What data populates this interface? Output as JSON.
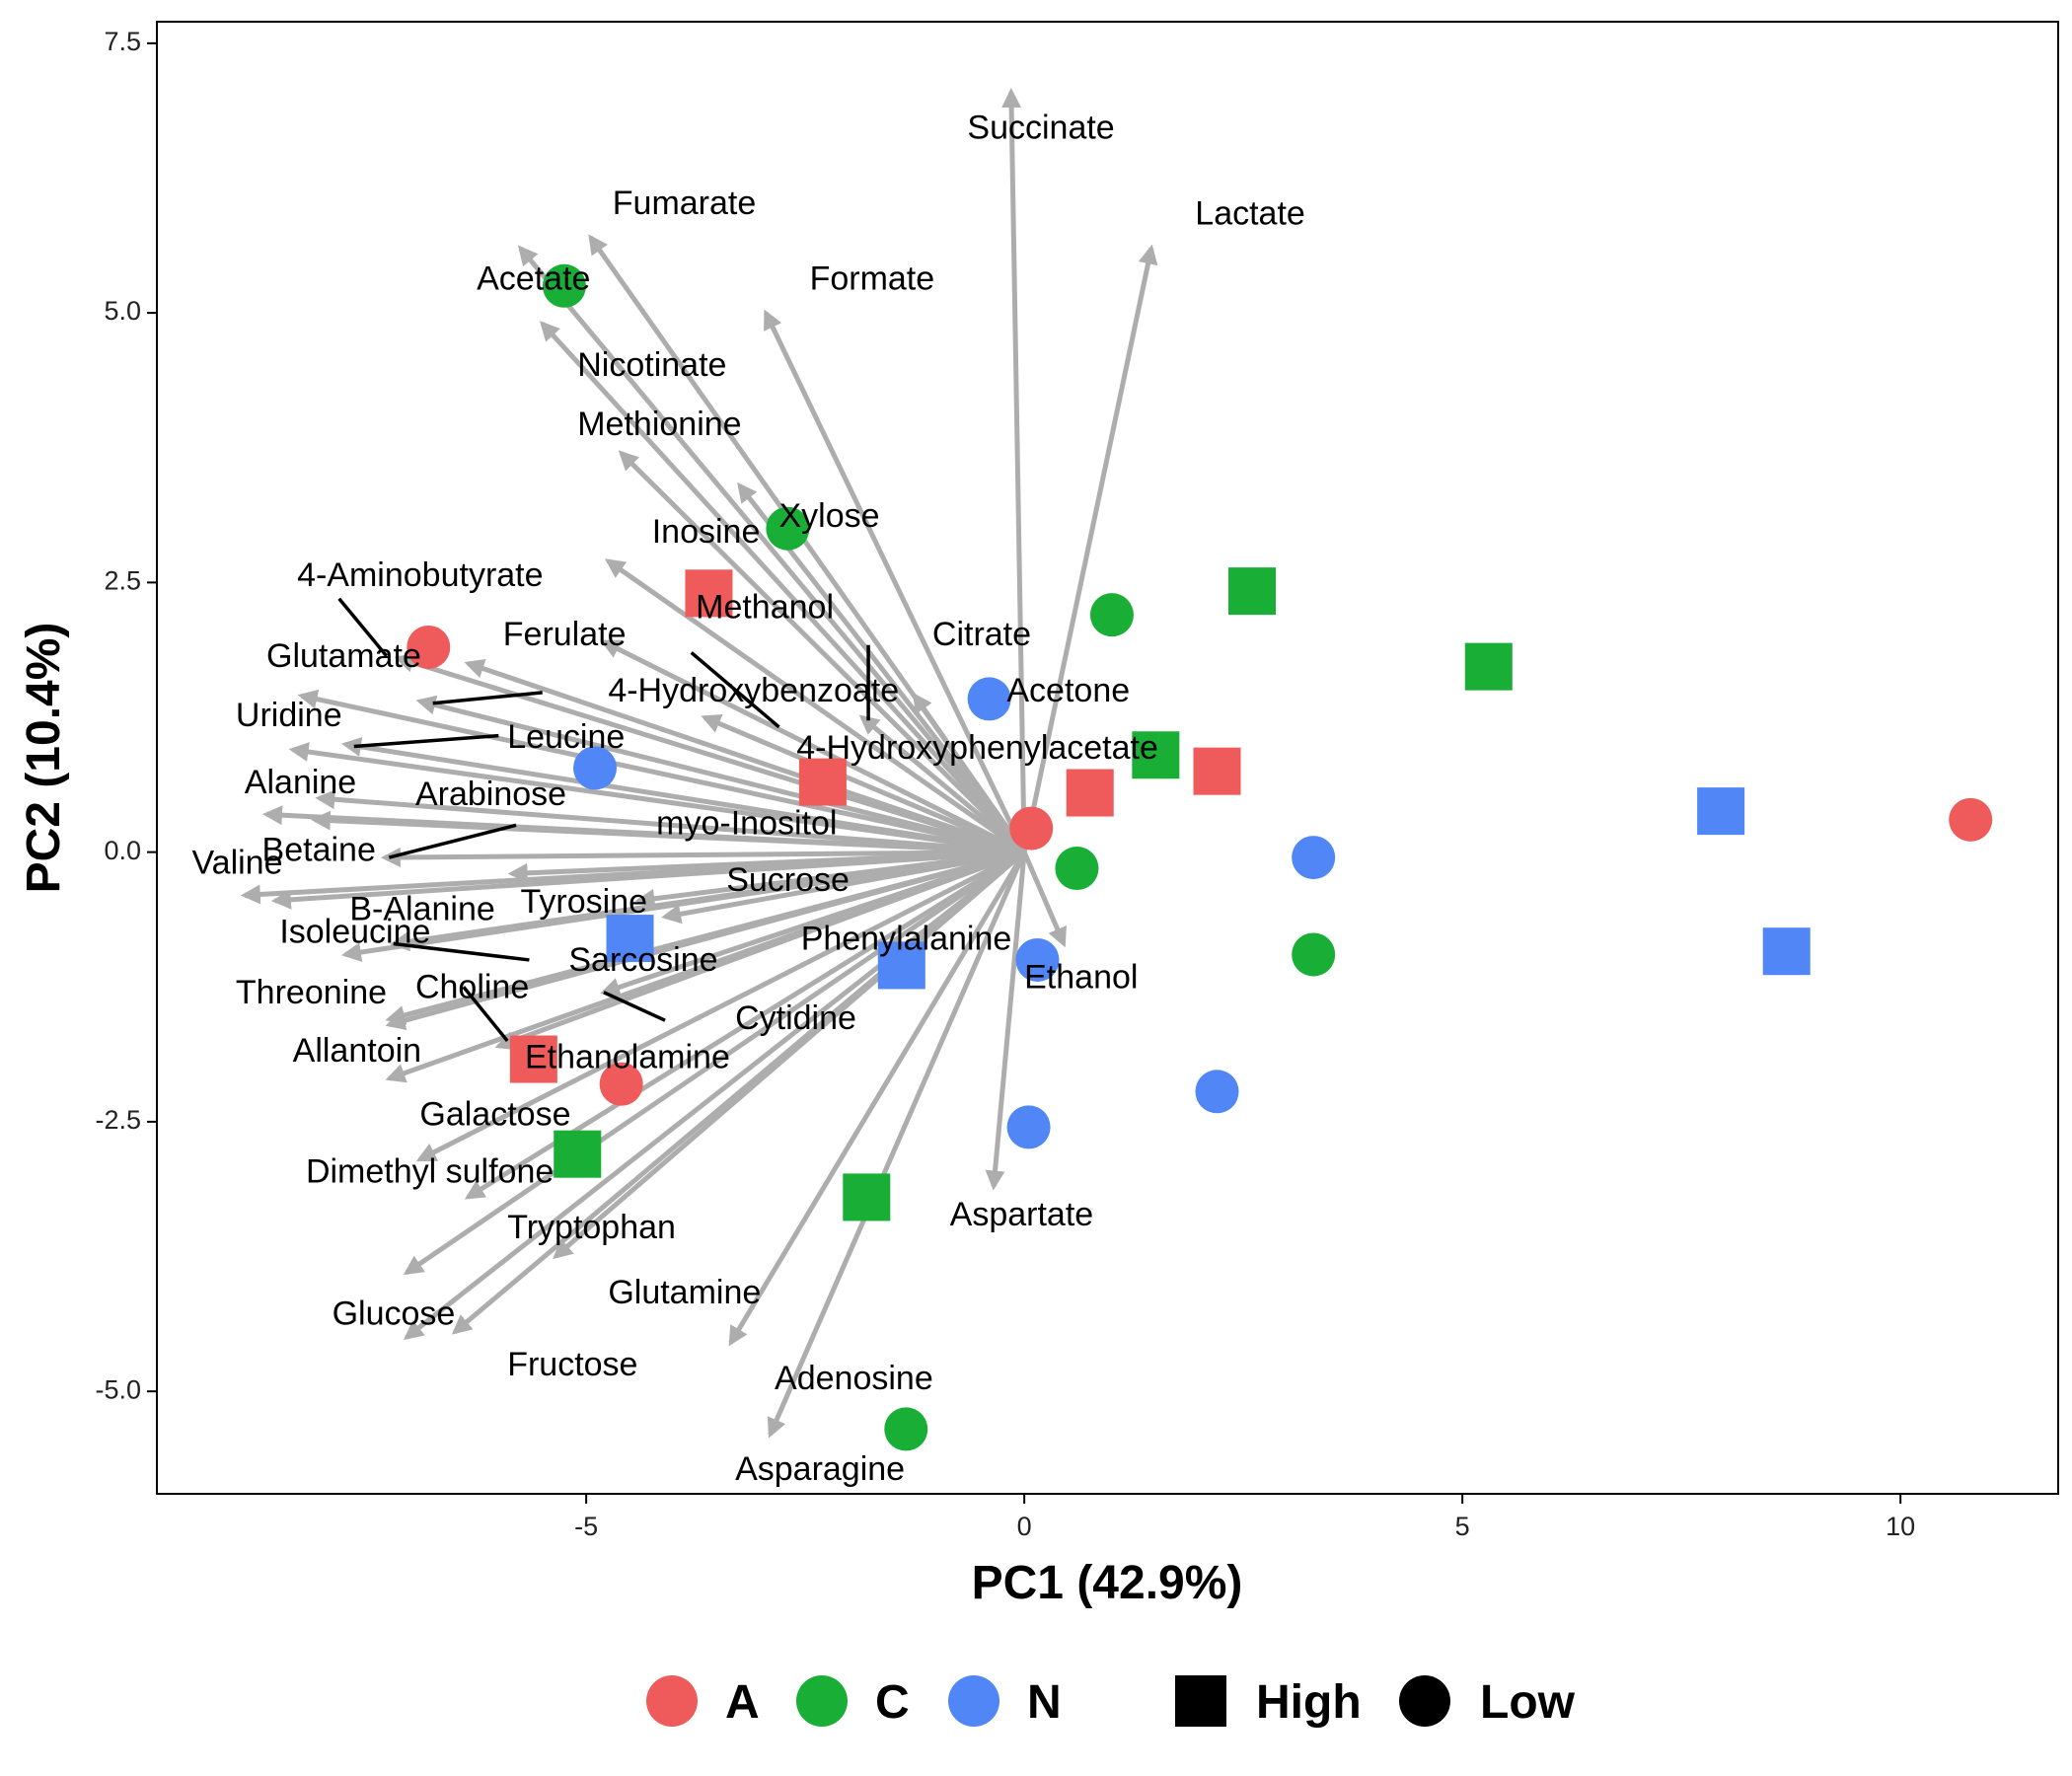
{
  "chart_data": {
    "type": "scatter",
    "xlabel": "PC1 (42.9%)",
    "ylabel": "PC2 (10.4%)",
    "xlim": [
      -9.9,
      11.8
    ],
    "ylim": [
      -5.95,
      7.7
    ],
    "xticks": [
      -5,
      0,
      5,
      10
    ],
    "xtick_labels": [
      "-5",
      "0",
      "5",
      "10"
    ],
    "yticks": [
      -5.0,
      -2.5,
      0.0,
      2.5,
      5.0,
      7.5
    ],
    "ytick_labels": [
      "-5.0",
      "-2.5",
      "0.0",
      "2.5",
      "5.0",
      "7.5"
    ],
    "grid": false,
    "legend_position": "bottom",
    "colors": {
      "A": "#EF5B5B",
      "C": "#19AE35",
      "N": "#5086F5",
      "arrow": "#ADADAD",
      "label": "#000000"
    },
    "legend": {
      "color_groups": [
        {
          "key": "A",
          "label": "A"
        },
        {
          "key": "C",
          "label": "C"
        },
        {
          "key": "N",
          "label": "N"
        }
      ],
      "shape_groups": [
        {
          "key": "High",
          "label": "High",
          "shape": "square"
        },
        {
          "key": "Low",
          "label": "Low",
          "shape": "circle"
        }
      ]
    },
    "points": [
      {
        "x": -6.8,
        "y": 1.9,
        "group": "A",
        "shape": "Low"
      },
      {
        "x": -3.6,
        "y": 2.4,
        "group": "A",
        "shape": "High"
      },
      {
        "x": -2.3,
        "y": 0.65,
        "group": "A",
        "shape": "High"
      },
      {
        "x": 0.08,
        "y": 0.22,
        "group": "A",
        "shape": "Low"
      },
      {
        "x": 0.75,
        "y": 0.55,
        "group": "A",
        "shape": "High"
      },
      {
        "x": 2.2,
        "y": 0.75,
        "group": "A",
        "shape": "High"
      },
      {
        "x": 10.8,
        "y": 0.3,
        "group": "A",
        "shape": "Low"
      },
      {
        "x": -5.6,
        "y": -1.92,
        "group": "A",
        "shape": "High"
      },
      {
        "x": -4.6,
        "y": -2.15,
        "group": "A",
        "shape": "Low"
      },
      {
        "x": -5.25,
        "y": 5.25,
        "group": "C",
        "shape": "Low"
      },
      {
        "x": -2.7,
        "y": 3.0,
        "group": "C",
        "shape": "Low"
      },
      {
        "x": 1.0,
        "y": 2.2,
        "group": "C",
        "shape": "Low"
      },
      {
        "x": 2.6,
        "y": 2.42,
        "group": "C",
        "shape": "High"
      },
      {
        "x": 5.3,
        "y": 1.72,
        "group": "C",
        "shape": "High"
      },
      {
        "x": 1.5,
        "y": 0.9,
        "group": "C",
        "shape": "High"
      },
      {
        "x": 0.6,
        "y": -0.15,
        "group": "C",
        "shape": "Low"
      },
      {
        "x": 3.3,
        "y": -0.95,
        "group": "C",
        "shape": "Low"
      },
      {
        "x": -5.1,
        "y": -2.8,
        "group": "C",
        "shape": "High"
      },
      {
        "x": -1.8,
        "y": -3.2,
        "group": "C",
        "shape": "High"
      },
      {
        "x": -1.35,
        "y": -5.35,
        "group": "C",
        "shape": "Low"
      },
      {
        "x": -0.4,
        "y": 1.42,
        "group": "N",
        "shape": "Low"
      },
      {
        "x": -4.9,
        "y": 0.78,
        "group": "N",
        "shape": "Low"
      },
      {
        "x": -4.5,
        "y": -0.8,
        "group": "N",
        "shape": "High"
      },
      {
        "x": -1.4,
        "y": -1.05,
        "group": "N",
        "shape": "High"
      },
      {
        "x": 0.15,
        "y": -1.0,
        "group": "N",
        "shape": "Low"
      },
      {
        "x": 3.3,
        "y": -0.05,
        "group": "N",
        "shape": "Low"
      },
      {
        "x": 2.2,
        "y": -2.22,
        "group": "N",
        "shape": "Low"
      },
      {
        "x": 0.05,
        "y": -2.55,
        "group": "N",
        "shape": "Low"
      },
      {
        "x": 7.95,
        "y": 0.38,
        "group": "N",
        "shape": "High"
      },
      {
        "x": 8.7,
        "y": -0.92,
        "group": "N",
        "shape": "High"
      }
    ],
    "loadings": [
      {
        "name": "Succinate",
        "x": -0.15,
        "y": 7.05,
        "lx": -0.65,
        "ly": 6.7
      },
      {
        "name": "Lactate",
        "x": 1.45,
        "y": 5.6,
        "lx": 1.95,
        "ly": 5.9
      },
      {
        "name": "Fumarate",
        "x": -4.95,
        "y": 5.7,
        "lx": -4.7,
        "ly": 6.0
      },
      {
        "name": "Acetate",
        "x": -5.75,
        "y": 5.6,
        "lx": -6.25,
        "ly": 5.3
      },
      {
        "name": "Formate",
        "x": -2.95,
        "y": 5.0,
        "lx": -2.45,
        "ly": 5.3
      },
      {
        "name": "Nicotinate",
        "x": -5.5,
        "y": 4.9,
        "lx": -5.1,
        "ly": 4.5
      },
      {
        "name": "Methionine",
        "x": -4.6,
        "y": 3.7,
        "lx": -5.1,
        "ly": 3.95
      },
      {
        "name": "Xylose",
        "x": -3.25,
        "y": 3.4,
        "lx": -2.8,
        "ly": 3.1
      },
      {
        "name": "Inosine",
        "x": -4.75,
        "y": 2.7,
        "lx": -4.25,
        "ly": 2.95
      },
      {
        "name": "4-Aminobutyrate",
        "x": -7.15,
        "y": 1.8,
        "lx": -8.3,
        "ly": 2.55
      },
      {
        "name": "Ferulate",
        "x": -6.35,
        "y": 1.75,
        "lx": -5.95,
        "ly": 2.0
      },
      {
        "name": "Methanol",
        "x": -4.8,
        "y": 1.95,
        "lx": -3.75,
        "ly": 2.25
      },
      {
        "name": "Citrate",
        "x": -1.85,
        "y": 1.25,
        "lx": -1.05,
        "ly": 2.0
      },
      {
        "name": "Glutamate",
        "x": -8.25,
        "y": 1.45,
        "lx": -8.65,
        "ly": 1.8
      },
      {
        "name": "4-Hydroxybenzoate",
        "x": -6.9,
        "y": 1.4,
        "lx": -4.75,
        "ly": 1.48
      },
      {
        "name": "Acetone",
        "x": -1.25,
        "y": 1.45,
        "lx": -0.2,
        "ly": 1.48
      },
      {
        "name": "Uridine",
        "x": -8.35,
        "y": 0.95,
        "lx": -9.0,
        "ly": 1.25
      },
      {
        "name": "Leucine",
        "x": -7.75,
        "y": 1.0,
        "lx": -5.9,
        "ly": 1.05
      },
      {
        "name": "4-Hydroxyphenylacetate",
        "x": -3.65,
        "y": 1.25,
        "lx": -2.6,
        "ly": 0.95
      },
      {
        "name": "Alanine",
        "x": -8.65,
        "y": 0.35,
        "lx": -8.9,
        "ly": 0.63
      },
      {
        "name": "Arabinose",
        "x": -8.05,
        "y": 0.5,
        "lx": -6.95,
        "ly": 0.52
      },
      {
        "name": "myo-Inositol",
        "x": -7.3,
        "y": -0.05,
        "lx": -4.2,
        "ly": 0.25
      },
      {
        "name": "Betaine",
        "x": -8.1,
        "y": 0.3,
        "lx": -8.7,
        "ly": 0.0
      },
      {
        "name": "Valine",
        "x": -8.9,
        "y": -0.4,
        "lx": -9.5,
        "ly": -0.12
      },
      {
        "name": "Sucrose",
        "x": -4.4,
        "y": -0.45,
        "lx": -3.4,
        "ly": -0.28
      },
      {
        "name": "Tyrosine",
        "x": -5.85,
        "y": -0.2,
        "lx": -5.75,
        "ly": -0.48
      },
      {
        "name": "B-Alanine",
        "x": -8.55,
        "y": -0.45,
        "lx": -7.7,
        "ly": -0.55
      },
      {
        "name": "Phenylalanine",
        "x": -4.1,
        "y": -0.6,
        "lx": -2.55,
        "ly": -0.82
      },
      {
        "name": "Isoleucine",
        "x": -7.75,
        "y": -0.95,
        "lx": -8.5,
        "ly": -0.76
      },
      {
        "name": "Sarcosine",
        "x": -7.2,
        "y": -0.85,
        "lx": -5.2,
        "ly": -1.02
      },
      {
        "name": "Ethanol",
        "x": 0.45,
        "y": -0.85,
        "lx": 0.0,
        "ly": -1.18
      },
      {
        "name": "Threonine",
        "x": -7.25,
        "y": -1.6,
        "lx": -9.0,
        "ly": -1.32
      },
      {
        "name": "Choline",
        "x": -7.25,
        "y": -1.55,
        "lx": -6.95,
        "ly": -1.27
      },
      {
        "name": "Cytidine",
        "x": -4.8,
        "y": -1.3,
        "lx": -3.3,
        "ly": -1.56
      },
      {
        "name": "Allantoin",
        "x": -7.25,
        "y": -2.1,
        "lx": -8.35,
        "ly": -1.86
      },
      {
        "name": "Ethanolamine",
        "x": -6.0,
        "y": -1.8,
        "lx": -5.7,
        "ly": -1.92
      },
      {
        "name": "Galactose",
        "x": -6.9,
        "y": -2.85,
        "lx": -6.9,
        "ly": -2.45
      },
      {
        "name": "Dimethyl sulfone",
        "x": -6.35,
        "y": -3.2,
        "lx": -8.2,
        "ly": -2.98
      },
      {
        "name": "Aspartate",
        "x": -0.35,
        "y": -3.1,
        "lx": -0.85,
        "ly": -3.38
      },
      {
        "name": "Tryptophan",
        "x": -7.05,
        "y": -3.9,
        "lx": -5.9,
        "ly": -3.5
      },
      {
        "name": "Glutamine",
        "x": -5.35,
        "y": -3.75,
        "lx": -4.75,
        "ly": -4.1
      },
      {
        "name": "Glucose",
        "x": -7.05,
        "y": -4.5,
        "lx": -7.9,
        "ly": -4.3
      },
      {
        "name": "Fructose",
        "x": -6.5,
        "y": -4.45,
        "lx": -5.9,
        "ly": -4.77
      },
      {
        "name": "Adenosine",
        "x": -3.35,
        "y": -4.55,
        "lx": -2.85,
        "ly": -4.9
      },
      {
        "name": "Asparagine",
        "x": -2.9,
        "y": -5.4,
        "lx": -3.3,
        "ly": -5.74
      }
    ],
    "leader_lines": [
      {
        "from": [
          -7.82,
          2.35
        ],
        "to": [
          -7.28,
          1.82
        ]
      },
      {
        "from": [
          -5.5,
          1.48
        ],
        "to": [
          -6.75,
          1.38
        ]
      },
      {
        "from": [
          -6.0,
          1.08
        ],
        "to": [
          -7.65,
          0.98
        ]
      },
      {
        "from": [
          -3.8,
          1.85
        ],
        "to": [
          -2.8,
          1.16
        ]
      },
      {
        "from": [
          -1.78,
          1.22
        ],
        "to": [
          -1.78,
          1.92
        ]
      },
      {
        "from": [
          -5.8,
          0.25
        ],
        "to": [
          -7.25,
          -0.05
        ]
      },
      {
        "from": [
          -5.65,
          -1.0
        ],
        "to": [
          -7.2,
          -0.85
        ]
      },
      {
        "from": [
          -4.1,
          -1.56
        ],
        "to": [
          -4.8,
          -1.3
        ]
      },
      {
        "from": [
          -5.9,
          -1.75
        ],
        "to": [
          -6.4,
          -1.25
        ]
      }
    ]
  }
}
